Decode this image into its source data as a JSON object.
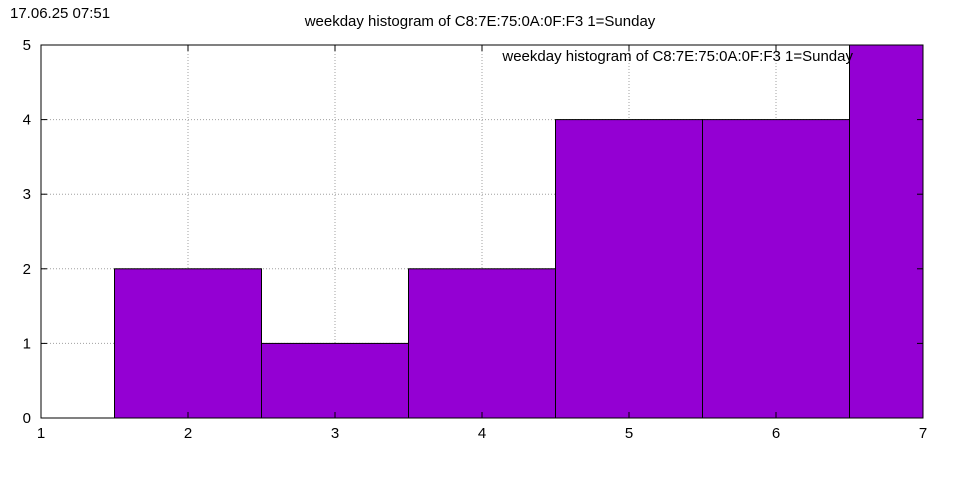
{
  "timestamp": "17.06.25 07:51",
  "chart_data": {
    "type": "bar",
    "title": "weekday histogram of C8:7E:75:0A:0F:F3 1=Sunday",
    "legend": {
      "label": "weekday histogram of C8:7E:75:0A:0F:F3 1=Sunday",
      "placement": "top-right"
    },
    "xlabel": "",
    "ylabel": "",
    "xlim": [
      1,
      7
    ],
    "ylim": [
      0,
      5
    ],
    "xticks": [
      1,
      2,
      3,
      4,
      5,
      6,
      7
    ],
    "yticks": [
      0,
      1,
      2,
      3,
      4,
      5
    ],
    "bar_width": 1,
    "x": [
      2,
      3,
      4,
      5,
      6,
      7
    ],
    "values": [
      2,
      1,
      2,
      4,
      4,
      5
    ],
    "bar_color": "#9400d3",
    "grid": true
  }
}
